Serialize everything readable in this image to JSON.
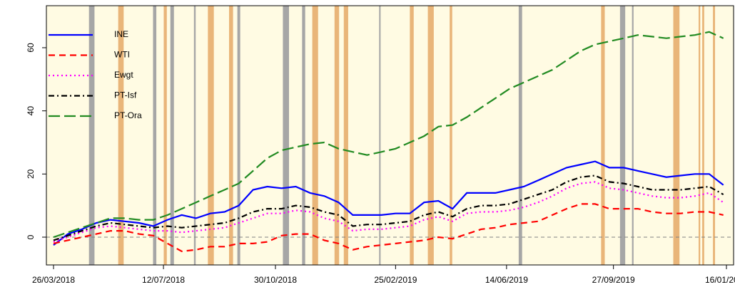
{
  "chart_data": {
    "type": "line",
    "x": [
      "26/03/2018",
      "09/04/2018",
      "23/04/2018",
      "07/05/2018",
      "21/05/2018",
      "04/06/2018",
      "18/06/2018",
      "02/07/2018",
      "16/07/2018",
      "30/07/2018",
      "13/08/2018",
      "27/08/2018",
      "10/09/2018",
      "24/09/2018",
      "08/10/2018",
      "22/10/2018",
      "05/11/2018",
      "19/11/2018",
      "03/12/2018",
      "17/12/2018",
      "31/12/2018",
      "14/01/2019",
      "28/01/2019",
      "11/02/2019",
      "25/02/2019",
      "11/03/2019",
      "25/03/2019",
      "08/04/2019",
      "22/04/2019",
      "06/05/2019",
      "20/05/2019",
      "03/06/2019",
      "17/06/2019",
      "01/07/2019",
      "15/07/2019",
      "29/07/2019",
      "12/08/2019",
      "26/08/2019",
      "09/09/2019",
      "23/09/2019",
      "07/10/2019",
      "21/10/2019",
      "04/11/2019",
      "18/11/2019",
      "02/12/2019",
      "16/12/2019",
      "30/12/2019",
      "13/01/2020"
    ],
    "series": [
      {
        "name": "INE",
        "color": "#0000ff",
        "linestyle": "solid",
        "values": [
          -2.5,
          1,
          2.5,
          4.5,
          5.5,
          5,
          4.5,
          3.5,
          5.5,
          7,
          6,
          7.5,
          8,
          10,
          15,
          16,
          15.5,
          16,
          14,
          13,
          11,
          7,
          7,
          7,
          7.5,
          7.5,
          11,
          11.5,
          9,
          14,
          14,
          14,
          15,
          16,
          18,
          20,
          22,
          23,
          24,
          22,
          22,
          21,
          20,
          19,
          19.5,
          20,
          20,
          16.5
        ]
      },
      {
        "name": "WTI",
        "color": "#ff0000",
        "linestyle": "dashed",
        "values": [
          -2,
          -1,
          0,
          1,
          2,
          2,
          1,
          0.5,
          -2,
          -4.5,
          -4,
          -3,
          -3,
          -2,
          -2,
          -1.5,
          0.5,
          1,
          1,
          -1,
          -2,
          -4,
          -3,
          -2.5,
          -2,
          -1.5,
          -1,
          0,
          -0.5,
          1,
          2.5,
          3,
          4,
          4.5,
          5,
          7,
          9,
          10.5,
          10.5,
          9,
          9,
          9,
          8,
          7.5,
          7.5,
          8,
          8,
          7
        ]
      },
      {
        "name": "Ewgt",
        "color": "#ff00ff",
        "linestyle": "dotted",
        "values": [
          -1.5,
          0,
          1.5,
          3,
          3.5,
          3,
          2.5,
          2,
          2,
          1.5,
          2,
          2.5,
          3,
          4.5,
          6,
          7.5,
          7.5,
          8.5,
          8,
          6,
          5,
          2,
          2.5,
          2.5,
          3,
          3.5,
          5.5,
          6.5,
          5,
          7.5,
          8,
          8,
          8.5,
          9.5,
          11,
          13,
          15.5,
          17,
          17.5,
          15.5,
          15,
          14,
          13,
          12.5,
          12.5,
          13,
          14,
          11
        ]
      },
      {
        "name": "PT-Isf",
        "color": "#000000",
        "linestyle": "dashdot",
        "values": [
          -1,
          0.5,
          2,
          3.5,
          4.5,
          4,
          3.5,
          3,
          3.5,
          3,
          3.5,
          4,
          4.5,
          6,
          8,
          9,
          9,
          10,
          9.5,
          8,
          7,
          3.5,
          4,
          4,
          4.5,
          5,
          7,
          8,
          6.5,
          9,
          10,
          10,
          10.5,
          12,
          13.5,
          15,
          17.5,
          19,
          19.5,
          17.5,
          17,
          16,
          15,
          15,
          15,
          15.5,
          16,
          13.5
        ]
      },
      {
        "name": "PT-Ora",
        "color": "#228b22",
        "linestyle": "longdash",
        "values": [
          0,
          1.5,
          3,
          4.5,
          6,
          6,
          5.5,
          5.5,
          7,
          9,
          11,
          13,
          15,
          17,
          21,
          25,
          27.5,
          28.5,
          29.5,
          30,
          28,
          27,
          26,
          27,
          28,
          30,
          32,
          35,
          35.5,
          38,
          41,
          44,
          47,
          49,
          51,
          53,
          56,
          59,
          61,
          62,
          63,
          64,
          63.5,
          63,
          63.5,
          64,
          65,
          63
        ]
      }
    ],
    "xlim": [
      "19/03/2018",
      "23/01/2020"
    ],
    "xticks": [
      "26/03/2018",
      "12/07/2018",
      "30/10/2018",
      "25/02/2019",
      "14/06/2019",
      "27/09/2019",
      "16/01/2020"
    ],
    "ylim": [
      -8.8,
      73.3
    ],
    "yticks": [
      0,
      20,
      40,
      60
    ],
    "legend": "top-left"
  }
}
